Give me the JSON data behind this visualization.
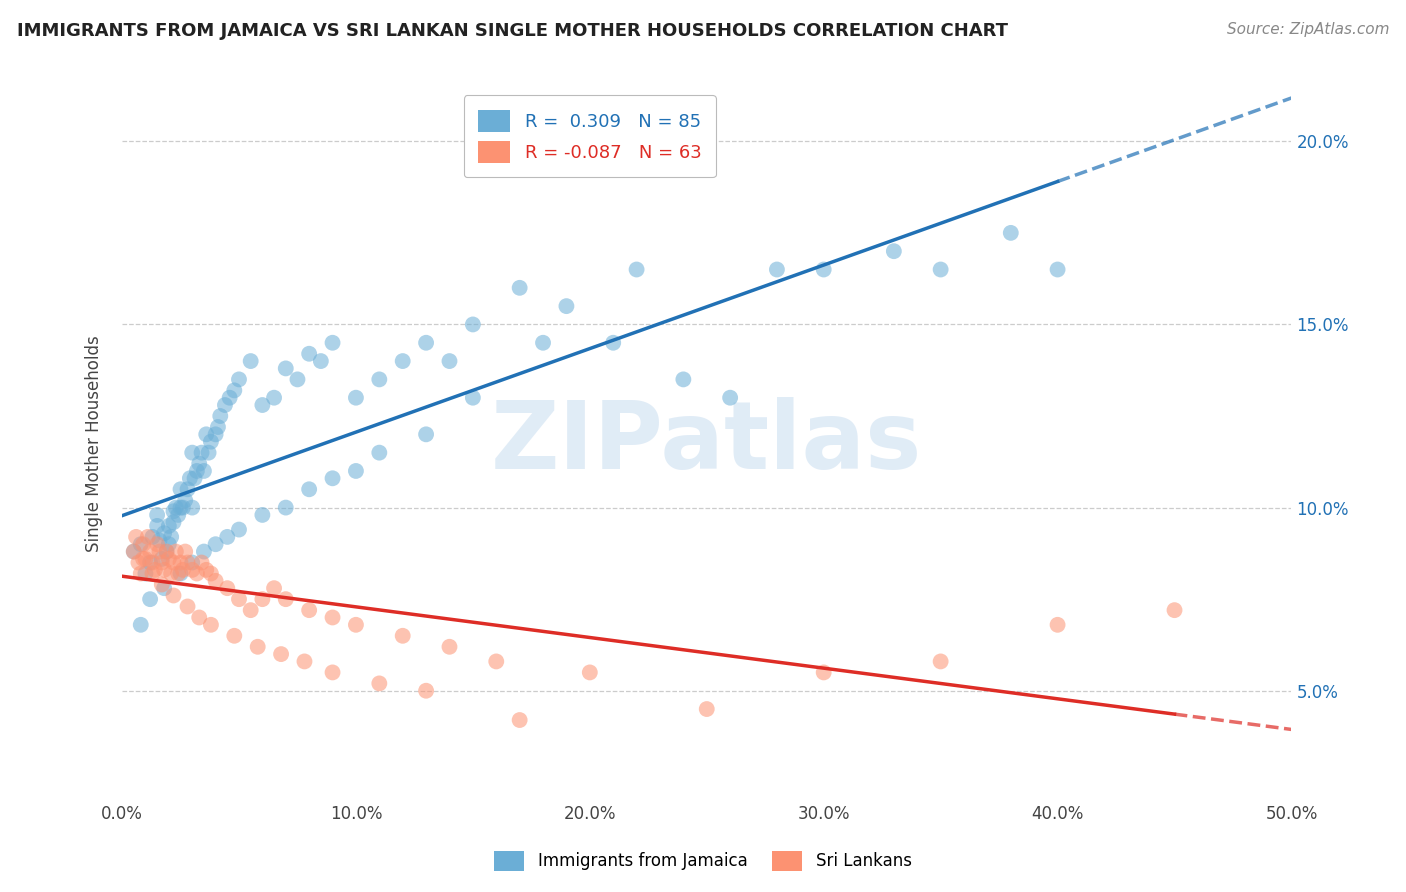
{
  "title": "IMMIGRANTS FROM JAMAICA VS SRI LANKAN SINGLE MOTHER HOUSEHOLDS CORRELATION CHART",
  "source": "Source: ZipAtlas.com",
  "ylabel": "Single Mother Households",
  "xlim": [
    0,
    0.5
  ],
  "ylim": [
    0.02,
    0.215
  ],
  "xticks": [
    0.0,
    0.1,
    0.2,
    0.3,
    0.4,
    0.5
  ],
  "xtick_labels": [
    "0.0%",
    "10.0%",
    "20.0%",
    "30.0%",
    "40.0%",
    "50.0%"
  ],
  "yticks": [
    0.05,
    0.1,
    0.15,
    0.2
  ],
  "ytick_labels": [
    "5.0%",
    "10.0%",
    "15.0%",
    "20.0%"
  ],
  "blue_color": "#6baed6",
  "pink_color": "#fc9272",
  "blue_line_color": "#2171b5",
  "pink_line_color": "#de2d26",
  "R_blue": 0.309,
  "N_blue": 85,
  "R_pink": -0.087,
  "N_pink": 63,
  "legend_labels": [
    "Immigrants from Jamaica",
    "Sri Lankans"
  ],
  "watermark": "ZIPatlas",
  "blue_scatter_x": [
    0.005,
    0.008,
    0.01,
    0.012,
    0.013,
    0.015,
    0.015,
    0.016,
    0.017,
    0.018,
    0.019,
    0.02,
    0.02,
    0.021,
    0.022,
    0.022,
    0.023,
    0.024,
    0.025,
    0.025,
    0.026,
    0.027,
    0.028,
    0.029,
    0.03,
    0.03,
    0.031,
    0.032,
    0.033,
    0.034,
    0.035,
    0.036,
    0.037,
    0.038,
    0.04,
    0.041,
    0.042,
    0.044,
    0.046,
    0.048,
    0.05,
    0.055,
    0.06,
    0.065,
    0.07,
    0.075,
    0.08,
    0.085,
    0.09,
    0.1,
    0.11,
    0.12,
    0.13,
    0.14,
    0.15,
    0.17,
    0.19,
    0.21,
    0.22,
    0.24,
    0.26,
    0.28,
    0.3,
    0.33,
    0.35,
    0.38,
    0.4,
    0.008,
    0.012,
    0.018,
    0.025,
    0.03,
    0.035,
    0.04,
    0.045,
    0.05,
    0.06,
    0.07,
    0.08,
    0.09,
    0.1,
    0.11,
    0.13,
    0.15,
    0.18
  ],
  "blue_scatter_y": [
    0.088,
    0.09,
    0.082,
    0.085,
    0.092,
    0.095,
    0.098,
    0.091,
    0.086,
    0.093,
    0.088,
    0.09,
    0.095,
    0.092,
    0.096,
    0.099,
    0.1,
    0.098,
    0.1,
    0.105,
    0.1,
    0.102,
    0.105,
    0.108,
    0.1,
    0.115,
    0.108,
    0.11,
    0.112,
    0.115,
    0.11,
    0.12,
    0.115,
    0.118,
    0.12,
    0.122,
    0.125,
    0.128,
    0.13,
    0.132,
    0.135,
    0.14,
    0.128,
    0.13,
    0.138,
    0.135,
    0.142,
    0.14,
    0.145,
    0.13,
    0.135,
    0.14,
    0.145,
    0.14,
    0.15,
    0.16,
    0.155,
    0.145,
    0.165,
    0.135,
    0.13,
    0.165,
    0.165,
    0.17,
    0.165,
    0.175,
    0.165,
    0.068,
    0.075,
    0.078,
    0.082,
    0.085,
    0.088,
    0.09,
    0.092,
    0.094,
    0.098,
    0.1,
    0.105,
    0.108,
    0.11,
    0.115,
    0.12,
    0.13,
    0.145
  ],
  "pink_scatter_x": [
    0.005,
    0.007,
    0.008,
    0.009,
    0.01,
    0.011,
    0.012,
    0.013,
    0.014,
    0.015,
    0.016,
    0.017,
    0.018,
    0.019,
    0.02,
    0.021,
    0.022,
    0.023,
    0.024,
    0.025,
    0.026,
    0.027,
    0.028,
    0.03,
    0.032,
    0.034,
    0.036,
    0.038,
    0.04,
    0.045,
    0.05,
    0.055,
    0.06,
    0.065,
    0.07,
    0.08,
    0.09,
    0.1,
    0.12,
    0.14,
    0.16,
    0.2,
    0.25,
    0.3,
    0.35,
    0.4,
    0.45,
    0.006,
    0.009,
    0.013,
    0.017,
    0.022,
    0.028,
    0.033,
    0.038,
    0.048,
    0.058,
    0.068,
    0.078,
    0.09,
    0.11,
    0.13,
    0.17
  ],
  "pink_scatter_y": [
    0.088,
    0.085,
    0.082,
    0.09,
    0.086,
    0.092,
    0.088,
    0.085,
    0.083,
    0.09,
    0.088,
    0.085,
    0.083,
    0.088,
    0.086,
    0.082,
    0.085,
    0.088,
    0.082,
    0.085,
    0.083,
    0.088,
    0.085,
    0.083,
    0.082,
    0.085,
    0.083,
    0.082,
    0.08,
    0.078,
    0.075,
    0.072,
    0.075,
    0.078,
    0.075,
    0.072,
    0.07,
    0.068,
    0.065,
    0.062,
    0.058,
    0.055,
    0.045,
    0.055,
    0.058,
    0.068,
    0.072,
    0.092,
    0.086,
    0.082,
    0.079,
    0.076,
    0.073,
    0.07,
    0.068,
    0.065,
    0.062,
    0.06,
    0.058,
    0.055,
    0.052,
    0.05,
    0.042
  ]
}
